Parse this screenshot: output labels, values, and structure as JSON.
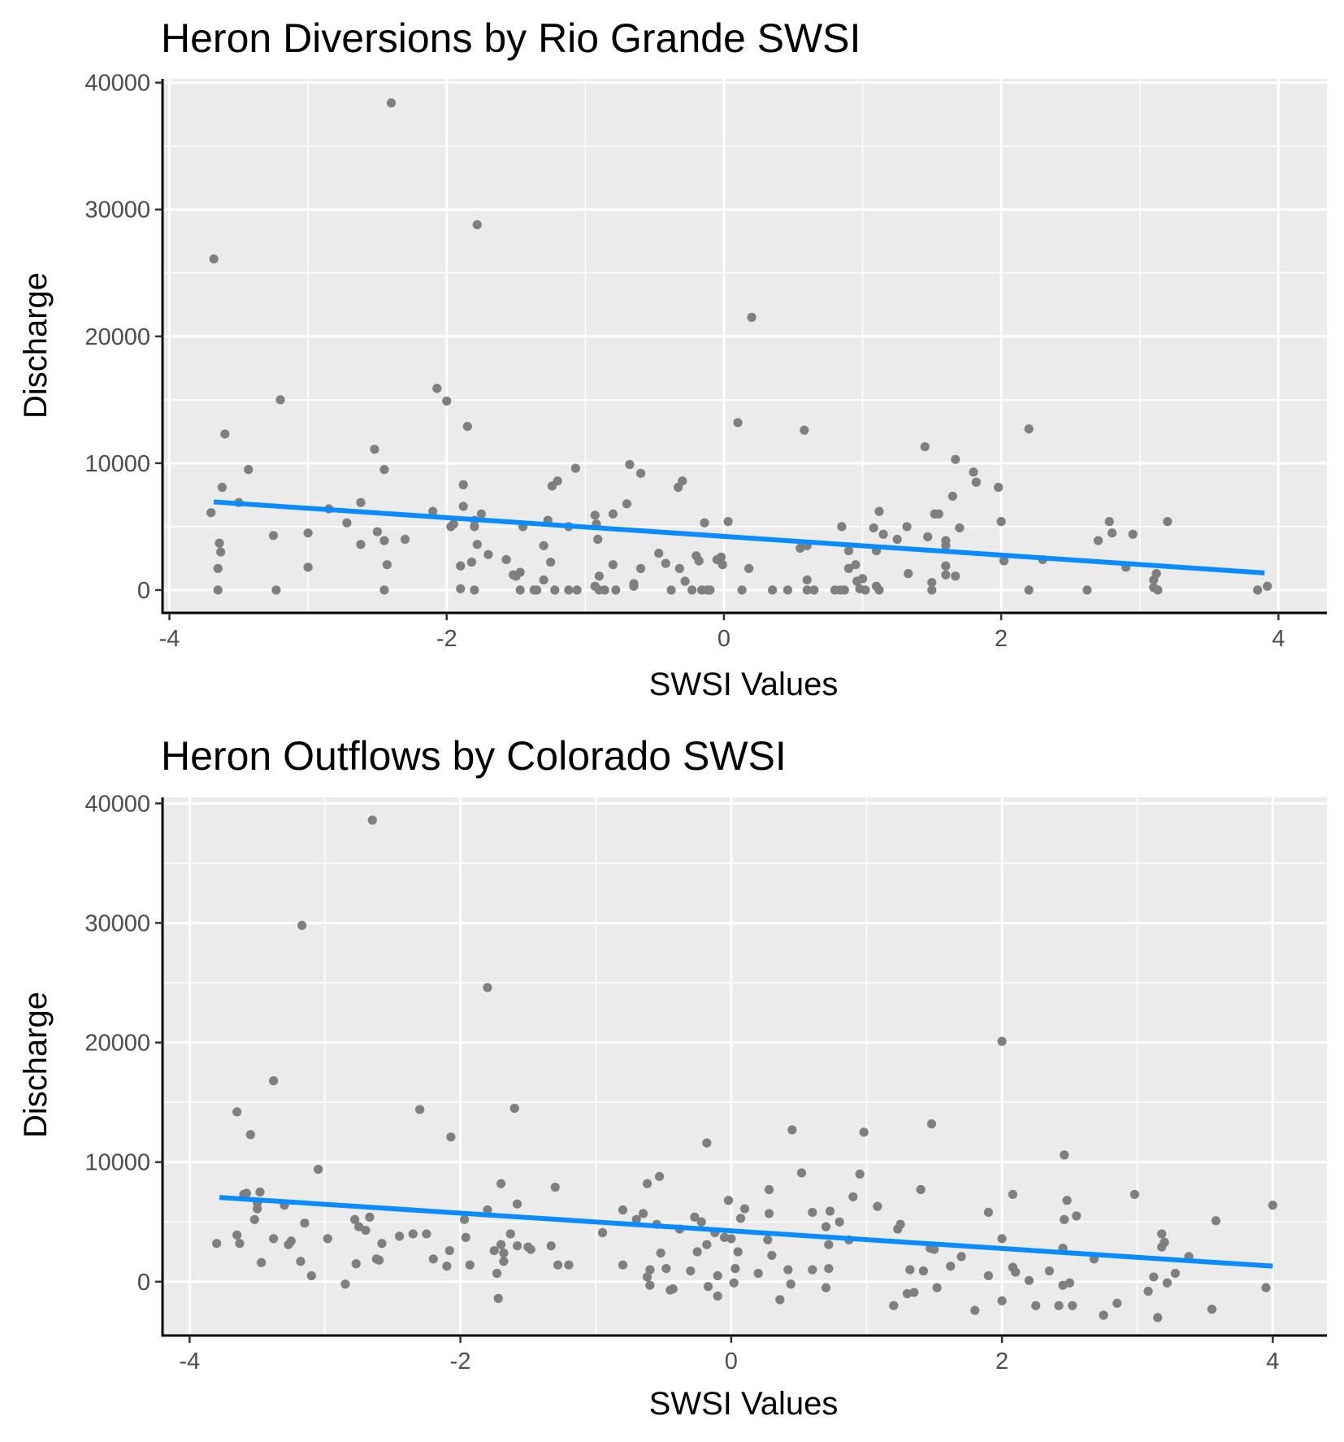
{
  "chart_data": [
    {
      "type": "scatter",
      "title": "Heron Diversions by Rio Grande SWSI",
      "xlabel": "SWSI Values",
      "ylabel": "Discharge",
      "xlim": [
        -4.05,
        4.35
      ],
      "ylim": [
        -1800,
        40300
      ],
      "x_ticks": [
        -4,
        -2,
        0,
        2,
        4
      ],
      "y_ticks": [
        0,
        10000,
        20000,
        30000,
        40000
      ],
      "x_tick_labels": [
        "-4",
        "-2",
        "0",
        "2",
        "4"
      ],
      "y_tick_labels": [
        "0",
        "10000",
        "20000",
        "30000",
        "40000"
      ],
      "grid": true,
      "point_color": "#7f7f7f",
      "line_color": "#0a8cff",
      "fit_line": {
        "x": [
          -3.68,
          3.9
        ],
        "y": [
          6950,
          1350
        ]
      },
      "points": [
        [
          -3.68,
          26100
        ],
        [
          -3.7,
          6100
        ],
        [
          -3.64,
          3700
        ],
        [
          -3.63,
          3000
        ],
        [
          -3.65,
          1700
        ],
        [
          -3.65,
          0
        ],
        [
          -3.62,
          8100
        ],
        [
          -3.6,
          12300
        ],
        [
          -3.5,
          6900
        ],
        [
          -3.43,
          9500
        ],
        [
          -3.2,
          15000
        ],
        [
          -3.25,
          4300
        ],
        [
          -3.23,
          0
        ],
        [
          -3.0,
          1800
        ],
        [
          -3.0,
          4500
        ],
        [
          -2.85,
          6400
        ],
        [
          -2.72,
          5300
        ],
        [
          -2.62,
          6900
        ],
        [
          -2.62,
          3600
        ],
        [
          -2.52,
          11100
        ],
        [
          -2.5,
          4600
        ],
        [
          -2.45,
          9500
        ],
        [
          -2.45,
          3900
        ],
        [
          -2.43,
          2000
        ],
        [
          -2.45,
          0
        ],
        [
          -2.4,
          38400
        ],
        [
          -2.3,
          4000
        ],
        [
          -2.1,
          6200
        ],
        [
          -2.07,
          15900
        ],
        [
          -2.0,
          14900
        ],
        [
          -1.97,
          5000
        ],
        [
          -1.95,
          5200
        ],
        [
          -1.9,
          1900
        ],
        [
          -1.9,
          100
        ],
        [
          -1.88,
          6600
        ],
        [
          -1.88,
          8300
        ],
        [
          -1.85,
          12900
        ],
        [
          -1.82,
          2200
        ],
        [
          -1.8,
          5500
        ],
        [
          -1.8,
          5000
        ],
        [
          -1.78,
          28800
        ],
        [
          -1.78,
          3600
        ],
        [
          -1.8,
          0
        ],
        [
          -1.75,
          6000
        ],
        [
          -1.7,
          2800
        ],
        [
          -1.57,
          2400
        ],
        [
          -1.52,
          1200
        ],
        [
          -1.5,
          1100
        ],
        [
          -1.47,
          1400
        ],
        [
          -1.47,
          0
        ],
        [
          -1.45,
          5000
        ],
        [
          -1.37,
          0
        ],
        [
          -1.35,
          0
        ],
        [
          -1.3,
          3500
        ],
        [
          -1.3,
          800
        ],
        [
          -1.27,
          5500
        ],
        [
          -1.25,
          2200
        ],
        [
          -1.24,
          8200
        ],
        [
          -1.22,
          0
        ],
        [
          -1.2,
          8600
        ],
        [
          -1.12,
          5000
        ],
        [
          -1.12,
          0
        ],
        [
          -1.07,
          9600
        ],
        [
          -1.06,
          0
        ],
        [
          -0.93,
          5900
        ],
        [
          -0.92,
          5200
        ],
        [
          -0.91,
          4000
        ],
        [
          -0.9,
          1100
        ],
        [
          -0.93,
          300
        ],
        [
          -0.9,
          0
        ],
        [
          -0.86,
          0
        ],
        [
          -0.8,
          6000
        ],
        [
          -0.8,
          2000
        ],
        [
          -0.78,
          0
        ],
        [
          -0.7,
          6800
        ],
        [
          -0.68,
          9900
        ],
        [
          -0.65,
          300
        ],
        [
          -0.65,
          500
        ],
        [
          -0.6,
          9200
        ],
        [
          -0.6,
          1700
        ],
        [
          -0.47,
          2900
        ],
        [
          -0.42,
          2100
        ],
        [
          -0.38,
          0
        ],
        [
          -0.33,
          8100
        ],
        [
          -0.32,
          1700
        ],
        [
          -0.3,
          8600
        ],
        [
          -0.28,
          700
        ],
        [
          -0.23,
          0
        ],
        [
          -0.2,
          2700
        ],
        [
          -0.18,
          2300
        ],
        [
          -0.16,
          0
        ],
        [
          -0.14,
          5300
        ],
        [
          -0.12,
          0
        ],
        [
          -0.1,
          0
        ],
        [
          -0.05,
          2400
        ],
        [
          -0.02,
          2600
        ],
        [
          -0.01,
          2000
        ],
        [
          0.03,
          5400
        ],
        [
          0.1,
          13200
        ],
        [
          0.13,
          0
        ],
        [
          0.18,
          1700
        ],
        [
          0.2,
          21500
        ],
        [
          0.35,
          0
        ],
        [
          0.46,
          0
        ],
        [
          0.55,
          3300
        ],
        [
          0.58,
          12600
        ],
        [
          0.6,
          3500
        ],
        [
          0.6,
          800
        ],
        [
          0.6,
          0
        ],
        [
          0.65,
          0
        ],
        [
          0.8,
          0
        ],
        [
          0.84,
          0
        ],
        [
          0.85,
          5000
        ],
        [
          0.87,
          0
        ],
        [
          0.9,
          1700
        ],
        [
          0.9,
          3100
        ],
        [
          0.95,
          2000
        ],
        [
          0.96,
          700
        ],
        [
          0.98,
          100
        ],
        [
          1.0,
          900
        ],
        [
          1.02,
          0
        ],
        [
          1.08,
          4900
        ],
        [
          1.1,
          3100
        ],
        [
          1.1,
          300
        ],
        [
          1.12,
          6200
        ],
        [
          1.12,
          0
        ],
        [
          1.15,
          4400
        ],
        [
          1.25,
          4000
        ],
        [
          1.32,
          5000
        ],
        [
          1.33,
          1300
        ],
        [
          1.45,
          11300
        ],
        [
          1.47,
          4200
        ],
        [
          1.5,
          600
        ],
        [
          1.52,
          6000
        ],
        [
          1.55,
          6000
        ],
        [
          1.5,
          0
        ],
        [
          1.6,
          1900
        ],
        [
          1.6,
          3900
        ],
        [
          1.6,
          3500
        ],
        [
          1.6,
          1200
        ],
        [
          1.65,
          7400
        ],
        [
          1.67,
          10300
        ],
        [
          1.67,
          1100
        ],
        [
          1.7,
          4900
        ],
        [
          1.8,
          9300
        ],
        [
          1.82,
          8500
        ],
        [
          1.98,
          8100
        ],
        [
          2.0,
          5400
        ],
        [
          2.02,
          2300
        ],
        [
          2.2,
          12700
        ],
        [
          2.2,
          0
        ],
        [
          2.3,
          2400
        ],
        [
          2.62,
          0
        ],
        [
          2.7,
          3900
        ],
        [
          2.78,
          5400
        ],
        [
          2.8,
          4500
        ],
        [
          2.9,
          1800
        ],
        [
          2.95,
          4400
        ],
        [
          3.1,
          200
        ],
        [
          3.1,
          800
        ],
        [
          3.12,
          1300
        ],
        [
          3.13,
          0
        ],
        [
          3.2,
          5400
        ],
        [
          3.85,
          0
        ],
        [
          3.92,
          300
        ]
      ]
    },
    {
      "type": "scatter",
      "title": "Heron Outflows by Colorado SWSI",
      "xlabel": "SWSI Values",
      "ylabel": "Discharge",
      "xlim": [
        -4.2,
        4.4
      ],
      "ylim": [
        -4500,
        40500
      ],
      "x_ticks": [
        -4,
        -2,
        0,
        2,
        4
      ],
      "y_ticks": [
        0,
        10000,
        20000,
        30000,
        40000
      ],
      "x_tick_labels": [
        "-4",
        "-2",
        "0",
        "2",
        "4"
      ],
      "y_tick_labels": [
        "0",
        "10000",
        "20000",
        "30000",
        "40000"
      ],
      "grid": true,
      "point_color": "#7f7f7f",
      "line_color": "#0a8cff",
      "fit_line": {
        "x": [
          -3.78,
          4.0
        ],
        "y": [
          7050,
          1300
        ]
      },
      "points": [
        [
          -3.8,
          3200
        ],
        [
          -3.65,
          14200
        ],
        [
          -3.65,
          3900
        ],
        [
          -3.63,
          3200
        ],
        [
          -3.6,
          7300
        ],
        [
          -3.58,
          7400
        ],
        [
          -3.55,
          12300
        ],
        [
          -3.52,
          5200
        ],
        [
          -3.5,
          6100
        ],
        [
          -3.5,
          6600
        ],
        [
          -3.48,
          7500
        ],
        [
          -3.47,
          1600
        ],
        [
          -3.38,
          16800
        ],
        [
          -3.38,
          3600
        ],
        [
          -3.3,
          6400
        ],
        [
          -3.27,
          3100
        ],
        [
          -3.25,
          3400
        ],
        [
          -3.18,
          1700
        ],
        [
          -3.17,
          29800
        ],
        [
          -3.15,
          4900
        ],
        [
          -3.1,
          500
        ],
        [
          -3.05,
          9400
        ],
        [
          -2.98,
          3600
        ],
        [
          -2.85,
          -200
        ],
        [
          -2.78,
          5200
        ],
        [
          -2.77,
          1500
        ],
        [
          -2.75,
          4600
        ],
        [
          -2.7,
          4300
        ],
        [
          -2.67,
          5400
        ],
        [
          -2.65,
          38600
        ],
        [
          -2.62,
          1900
        ],
        [
          -2.6,
          1800
        ],
        [
          -2.58,
          3200
        ],
        [
          -2.45,
          3800
        ],
        [
          -2.35,
          4000
        ],
        [
          -2.3,
          14400
        ],
        [
          -2.25,
          4000
        ],
        [
          -2.2,
          1900
        ],
        [
          -2.1,
          1300
        ],
        [
          -2.08,
          2600
        ],
        [
          -2.07,
          12100
        ],
        [
          -1.97,
          5200
        ],
        [
          -1.96,
          3700
        ],
        [
          -1.93,
          1400
        ],
        [
          -1.8,
          24600
        ],
        [
          -1.8,
          6000
        ],
        [
          -1.75,
          2600
        ],
        [
          -1.73,
          700
        ],
        [
          -1.72,
          -1400
        ],
        [
          -1.7,
          3100
        ],
        [
          -1.7,
          8200
        ],
        [
          -1.68,
          2400
        ],
        [
          -1.68,
          1700
        ],
        [
          -1.63,
          4000
        ],
        [
          -1.6,
          14500
        ],
        [
          -1.58,
          6500
        ],
        [
          -1.58,
          3000
        ],
        [
          -1.5,
          2900
        ],
        [
          -1.48,
          2700
        ],
        [
          -1.33,
          3000
        ],
        [
          -1.3,
          7900
        ],
        [
          -1.28,
          1400
        ],
        [
          -1.2,
          1400
        ],
        [
          -0.95,
          4100
        ],
        [
          -0.8,
          6000
        ],
        [
          -0.8,
          1400
        ],
        [
          -0.7,
          5200
        ],
        [
          -0.65,
          5700
        ],
        [
          -0.62,
          400
        ],
        [
          -0.62,
          8200
        ],
        [
          -0.6,
          1000
        ],
        [
          -0.6,
          -300
        ],
        [
          -0.55,
          4800
        ],
        [
          -0.53,
          8800
        ],
        [
          -0.52,
          2400
        ],
        [
          -0.48,
          1100
        ],
        [
          -0.45,
          -700
        ],
        [
          -0.43,
          -600
        ],
        [
          -0.38,
          4400
        ],
        [
          -0.3,
          900
        ],
        [
          -0.27,
          5400
        ],
        [
          -0.25,
          2500
        ],
        [
          -0.22,
          5000
        ],
        [
          -0.18,
          11600
        ],
        [
          -0.18,
          3100
        ],
        [
          -0.17,
          -400
        ],
        [
          -0.12,
          4100
        ],
        [
          -0.1,
          500
        ],
        [
          -0.1,
          -1200
        ],
        [
          -0.05,
          3700
        ],
        [
          -0.02,
          6800
        ],
        [
          0.0,
          3600
        ],
        [
          0.02,
          -100
        ],
        [
          0.03,
          1100
        ],
        [
          0.05,
          2500
        ],
        [
          0.07,
          5300
        ],
        [
          0.1,
          6100
        ],
        [
          0.2,
          700
        ],
        [
          0.27,
          3500
        ],
        [
          0.28,
          5700
        ],
        [
          0.28,
          7700
        ],
        [
          0.3,
          2200
        ],
        [
          0.36,
          -1500
        ],
        [
          0.42,
          1000
        ],
        [
          0.44,
          -200
        ],
        [
          0.45,
          12700
        ],
        [
          0.52,
          9100
        ],
        [
          0.6,
          1000
        ],
        [
          0.6,
          5800
        ],
        [
          0.7,
          4600
        ],
        [
          0.7,
          -500
        ],
        [
          0.72,
          3100
        ],
        [
          0.72,
          1100
        ],
        [
          0.73,
          5900
        ],
        [
          0.8,
          5000
        ],
        [
          0.87,
          3500
        ],
        [
          0.9,
          7100
        ],
        [
          0.95,
          9000
        ],
        [
          0.98,
          12500
        ],
        [
          1.08,
          6300
        ],
        [
          1.2,
          -2000
        ],
        [
          1.23,
          4400
        ],
        [
          1.25,
          4800
        ],
        [
          1.3,
          -1000
        ],
        [
          1.32,
          1000
        ],
        [
          1.35,
          -900
        ],
        [
          1.4,
          7700
        ],
        [
          1.42,
          900
        ],
        [
          1.47,
          2800
        ],
        [
          1.5,
          2700
        ],
        [
          1.48,
          13200
        ],
        [
          1.52,
          -500
        ],
        [
          1.62,
          1300
        ],
        [
          1.7,
          2100
        ],
        [
          1.8,
          -2400
        ],
        [
          1.9,
          5800
        ],
        [
          1.9,
          500
        ],
        [
          2.0,
          20100
        ],
        [
          2.0,
          3600
        ],
        [
          2.0,
          -1600
        ],
        [
          2.08,
          7300
        ],
        [
          2.08,
          1200
        ],
        [
          2.1,
          800
        ],
        [
          2.2,
          100
        ],
        [
          2.25,
          -2000
        ],
        [
          2.35,
          900
        ],
        [
          2.42,
          -2000
        ],
        [
          2.45,
          2800
        ],
        [
          2.45,
          -300
        ],
        [
          2.46,
          5200
        ],
        [
          2.46,
          10600
        ],
        [
          2.48,
          6800
        ],
        [
          2.5,
          -100
        ],
        [
          2.52,
          -2000
        ],
        [
          2.55,
          5500
        ],
        [
          2.68,
          1900
        ],
        [
          2.75,
          -2800
        ],
        [
          2.85,
          -1800
        ],
        [
          2.98,
          7300
        ],
        [
          3.08,
          -800
        ],
        [
          3.12,
          400
        ],
        [
          3.15,
          -3000
        ],
        [
          3.18,
          2900
        ],
        [
          3.18,
          4000
        ],
        [
          3.2,
          3300
        ],
        [
          3.22,
          -100
        ],
        [
          3.28,
          700
        ],
        [
          3.38,
          2100
        ],
        [
          3.55,
          -2300
        ],
        [
          3.58,
          5100
        ],
        [
          3.95,
          -500
        ],
        [
          4.0,
          6400
        ]
      ]
    }
  ]
}
